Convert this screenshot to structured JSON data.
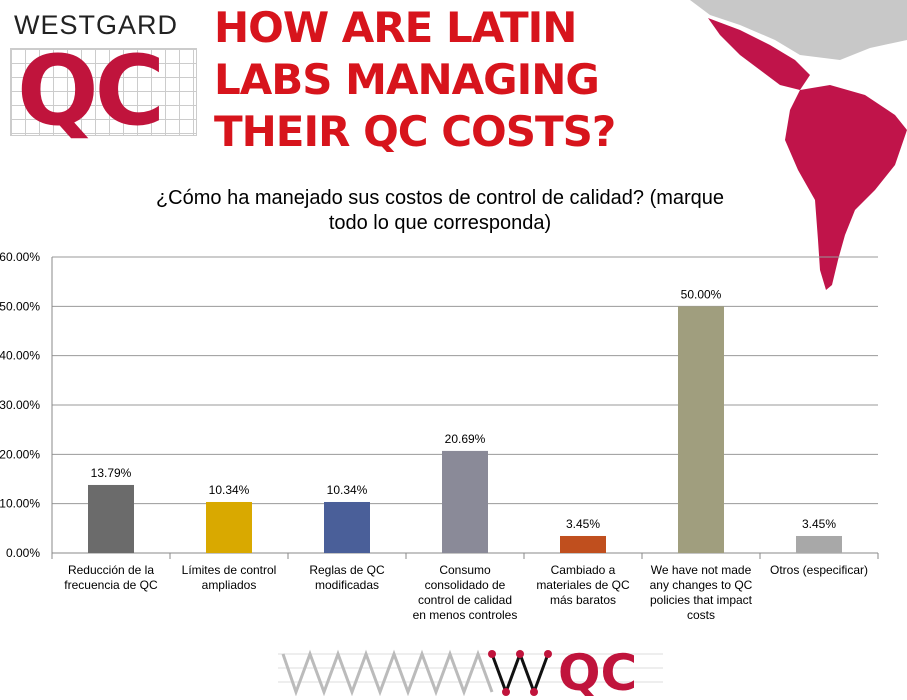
{
  "logo": {
    "brand": "WESTGARD",
    "mark": "QC"
  },
  "headline": [
    "HOW ARE LATIN",
    "LABS MANAGING",
    "THEIR QC COSTS?"
  ],
  "footer_logo": {
    "mark": "QC"
  },
  "colors": {
    "brand_red": "#c0143c",
    "headline_red": "#d7141c",
    "map": "#c0144a"
  },
  "chart_data": {
    "type": "bar",
    "title": "¿Cómo ha manejado sus costos de control de calidad? (marque todo lo que corresponda)",
    "title_lines": [
      "¿Cómo ha manejado sus costos de control de calidad? (marque",
      "todo lo que corresponda)"
    ],
    "categories": [
      [
        "Reducción de la",
        "frecuencia de QC"
      ],
      [
        "Límites de control",
        "ampliados"
      ],
      [
        "Reglas de QC",
        "modificadas"
      ],
      [
        "Consumo",
        "consolidado de",
        "control de calidad",
        "en menos controles"
      ],
      [
        "Cambiado a",
        "materiales de QC",
        "más baratos"
      ],
      [
        "We have not made",
        "any changes to QC",
        "policies that impact",
        "costs"
      ],
      [
        "Otros (especificar)"
      ]
    ],
    "values": [
      13.79,
      10.34,
      10.34,
      20.69,
      3.45,
      50.0,
      3.45
    ],
    "data_labels": [
      "13.79%",
      "10.34%",
      "10.34%",
      "20.69%",
      "3.45%",
      "50.00%",
      "3.45%"
    ],
    "bar_colors": [
      "#6b6b6b",
      "#d9a900",
      "#4a5f99",
      "#8a8a98",
      "#c04f1e",
      "#a09e7e",
      "#a8a8a8"
    ],
    "ylim": [
      0,
      60
    ],
    "yticks": [
      "0.00%",
      "10.00%",
      "20.00%",
      "30.00%",
      "40.00%",
      "50.00%",
      "60.00%"
    ],
    "grid": true,
    "legend": "none"
  }
}
